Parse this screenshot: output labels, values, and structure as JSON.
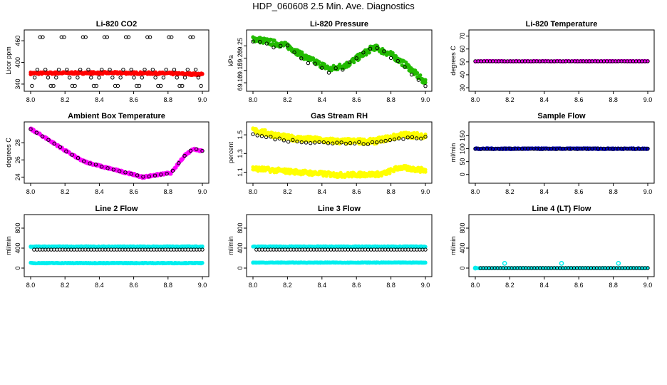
{
  "title": "HDP_060608  2.5 Min. Ave. Diagnostics",
  "chart_data": [
    {
      "type": "scatter",
      "title": "Li-820 CO2",
      "ylabel": "Licor ppm",
      "xlim": [
        8.0,
        9.0
      ],
      "ylim": [
        330,
        480
      ],
      "xticks": [
        "8.0",
        "8.2",
        "8.4",
        "8.6",
        "8.8",
        "9.0"
      ],
      "yticks": [
        "340",
        "400",
        "460"
      ],
      "series": [
        {
          "color": "#ff0000",
          "kind": "band",
          "values": [
            [
              8.0,
              370
            ],
            [
              8.25,
              371
            ],
            [
              8.5,
              371
            ],
            [
              8.75,
              370
            ],
            [
              9.0,
              367
            ]
          ],
          "spread": 3
        },
        {
          "color": "#000000",
          "kind": "cycle",
          "values": [
            335,
            358,
            380,
            470,
            470,
            380,
            358,
            335
          ],
          "n": 64
        }
      ]
    },
    {
      "type": "scatter",
      "title": "Li-820 Pressure",
      "ylabel": "kPa",
      "xlim": [
        8.0,
        9.0
      ],
      "ylim": [
        69.08,
        69.3
      ],
      "xticks": [
        "8.0",
        "8.2",
        "8.4",
        "8.6",
        "8.8",
        "9.0"
      ],
      "yticks": [
        "69.10",
        "69.15",
        "69.20",
        "69.25"
      ],
      "series": [
        {
          "color": "#22bb00",
          "kind": "band",
          "values": [
            [
              8.0,
              69.28
            ],
            [
              8.1,
              69.265
            ],
            [
              8.2,
              69.25
            ],
            [
              8.3,
              69.205
            ],
            [
              8.45,
              69.155
            ],
            [
              8.55,
              69.175
            ],
            [
              8.7,
              69.245
            ],
            [
              8.8,
              69.215
            ],
            [
              8.9,
              69.165
            ],
            [
              9.0,
              69.1
            ]
          ],
          "spread": 0.012
        },
        {
          "color": "#000000",
          "kind": "line",
          "values": [
            [
              8.0,
              69.275
            ],
            [
              8.1,
              69.255
            ],
            [
              8.2,
              69.245
            ],
            [
              8.3,
              69.195
            ],
            [
              8.45,
              69.145
            ],
            [
              8.55,
              69.17
            ],
            [
              8.7,
              69.245
            ],
            [
              8.8,
              69.205
            ],
            [
              8.9,
              69.155
            ],
            [
              9.0,
              69.095
            ]
          ],
          "n": 26,
          "jitter": 0.01
        }
      ]
    },
    {
      "type": "scatter",
      "title": "Li-820 Temperature",
      "ylabel": "degrees C",
      "xlim": [
        8.0,
        9.0
      ],
      "ylim": [
        30,
        72
      ],
      "xticks": [
        "8.0",
        "8.2",
        "8.4",
        "8.6",
        "8.8",
        "9.0"
      ],
      "yticks": [
        "30",
        "40",
        "50",
        "60",
        "70"
      ],
      "series": [
        {
          "color": "#ff00ff",
          "kind": "band",
          "values": [
            [
              8.0,
              50.5
            ],
            [
              9.0,
              50.5
            ]
          ],
          "spread": 0.3
        },
        {
          "color": "#000000",
          "kind": "line",
          "values": [
            [
              8.0,
              50.5
            ],
            [
              9.0,
              50.5
            ]
          ],
          "n": 60,
          "jitter": 0
        }
      ]
    },
    {
      "type": "scatter",
      "title": "Ambient Box Temperature",
      "ylabel": "degrees C",
      "xlim": [
        8.0,
        9.0
      ],
      "ylim": [
        23.7,
        30.0
      ],
      "xticks": [
        "8.0",
        "8.2",
        "8.4",
        "8.6",
        "8.8",
        "9.0"
      ],
      "yticks": [
        "24",
        "26",
        "28"
      ],
      "series": [
        {
          "color": "#ff00ff",
          "kind": "band",
          "values": [
            [
              8.0,
              29.6
            ],
            [
              8.1,
              28.4
            ],
            [
              8.2,
              27.1
            ],
            [
              8.3,
              25.9
            ],
            [
              8.4,
              25.3
            ],
            [
              8.5,
              24.8
            ],
            [
              8.6,
              24.3
            ],
            [
              8.65,
              24.0
            ],
            [
              8.75,
              24.3
            ],
            [
              8.82,
              24.5
            ],
            [
              8.9,
              26.6
            ],
            [
              8.95,
              27.3
            ],
            [
              9.0,
              27.0
            ]
          ],
          "spread": 0.12
        },
        {
          "color": "#000000",
          "kind": "line",
          "values": [
            [
              8.0,
              29.6
            ],
            [
              8.1,
              28.4
            ],
            [
              8.2,
              27.1
            ],
            [
              8.3,
              25.9
            ],
            [
              8.4,
              25.3
            ],
            [
              8.5,
              24.8
            ],
            [
              8.6,
              24.3
            ],
            [
              8.65,
              24.0
            ],
            [
              8.75,
              24.3
            ],
            [
              8.82,
              24.5
            ],
            [
              8.9,
              26.6
            ],
            [
              8.95,
              27.3
            ],
            [
              9.0,
              27.0
            ]
          ],
          "n": 30,
          "jitter": 0.05
        }
      ]
    },
    {
      "type": "scatter",
      "title": "Gas Stream RH",
      "ylabel": "percent",
      "xlim": [
        8.0,
        9.0
      ],
      "ylim": [
        1.02,
        1.6
      ],
      "xticks": [
        "8.0",
        "8.2",
        "8.4",
        "8.6",
        "8.8",
        "9.0"
      ],
      "yticks": [
        "1.1",
        "1.3",
        "1.5"
      ],
      "series": [
        {
          "color": "#ffff00",
          "kind": "band",
          "values": [
            [
              8.0,
              1.55
            ],
            [
              8.2,
              1.47
            ],
            [
              8.5,
              1.43
            ],
            [
              8.7,
              1.43
            ],
            [
              8.87,
              1.5
            ],
            [
              9.0,
              1.49
            ]
          ],
          "spread": 0.03
        },
        {
          "color": "#ffff00",
          "kind": "band",
          "values": [
            [
              8.0,
              1.14
            ],
            [
              8.2,
              1.11
            ],
            [
              8.5,
              1.07
            ],
            [
              8.75,
              1.08
            ],
            [
              8.85,
              1.15
            ],
            [
              9.0,
              1.12
            ]
          ],
          "spread": 0.025
        },
        {
          "color": "#000000",
          "kind": "line",
          "values": [
            [
              8.0,
              1.5
            ],
            [
              8.2,
              1.44
            ],
            [
              8.5,
              1.41
            ],
            [
              8.7,
              1.41
            ],
            [
              8.87,
              1.47
            ],
            [
              9.0,
              1.47
            ]
          ],
          "n": 40,
          "jitter": 0.015
        }
      ]
    },
    {
      "type": "scatter",
      "title": "Sample Flow",
      "ylabel": "ml/min",
      "xlim": [
        8.0,
        9.0
      ],
      "ylim": [
        -20,
        190
      ],
      "xticks": [
        "8.0",
        "8.2",
        "8.4",
        "8.6",
        "8.8",
        "9.0"
      ],
      "yticks": [
        "0",
        "50",
        "100",
        "150"
      ],
      "series": [
        {
          "color": "#0000cc",
          "kind": "band",
          "values": [
            [
              8.0,
              100
            ],
            [
              9.0,
              100
            ]
          ],
          "spread": 2
        },
        {
          "color": "#000000",
          "kind": "line",
          "values": [
            [
              8.0,
              100
            ],
            [
              9.0,
              100
            ]
          ],
          "n": 60,
          "jitter": 1
        }
      ]
    },
    {
      "type": "scatter",
      "title": "Line 2 Flow",
      "ylabel": "ml/min",
      "xlim": [
        8.0,
        9.0
      ],
      "ylim": [
        -100,
        1000
      ],
      "xticks": [
        "8.0",
        "8.2",
        "8.4",
        "8.6",
        "8.8",
        "9.0"
      ],
      "yticks": [
        "0",
        "400",
        "800"
      ],
      "series": [
        {
          "color": "#00eeee",
          "kind": "band",
          "values": [
            [
              8.0,
              430
            ],
            [
              9.0,
              430
            ]
          ],
          "spread": 8
        },
        {
          "color": "#00eeee",
          "kind": "band",
          "values": [
            [
              8.0,
              100
            ],
            [
              9.0,
              100
            ]
          ],
          "spread": 8
        },
        {
          "color": "#000000",
          "kind": "line",
          "values": [
            [
              8.02,
              370
            ],
            [
              9.0,
              370
            ]
          ],
          "n": 60,
          "jitter": 0
        }
      ]
    },
    {
      "type": "scatter",
      "title": "Line 3 Flow",
      "ylabel": "ml/min",
      "xlim": [
        8.0,
        9.0
      ],
      "ylim": [
        -100,
        1000
      ],
      "xticks": [
        "8.0",
        "8.2",
        "8.4",
        "8.6",
        "8.8",
        "9.0"
      ],
      "yticks": [
        "0",
        "400",
        "800"
      ],
      "series": [
        {
          "color": "#00eeee",
          "kind": "band",
          "values": [
            [
              8.0,
              430
            ],
            [
              9.0,
              430
            ]
          ],
          "spread": 8
        },
        {
          "color": "#00eeee",
          "kind": "band",
          "values": [
            [
              8.0,
              110
            ],
            [
              9.0,
              110
            ]
          ],
          "spread": 6
        },
        {
          "color": "#000000",
          "kind": "line",
          "values": [
            [
              8.02,
              370
            ],
            [
              9.0,
              370
            ]
          ],
          "n": 60,
          "jitter": 0
        }
      ]
    },
    {
      "type": "scatter",
      "title": "Line 4 (LT) Flow",
      "ylabel": "ml/min",
      "xlim": [
        8.0,
        9.0
      ],
      "ylim": [
        -100,
        1000
      ],
      "xticks": [
        "8.0",
        "8.2",
        "8.4",
        "8.6",
        "8.8",
        "9.0"
      ],
      "yticks": [
        "0",
        "400",
        "800"
      ],
      "series": [
        {
          "color": "#00eeee",
          "kind": "band",
          "values": [
            [
              8.0,
              0
            ],
            [
              9.0,
              0
            ]
          ],
          "spread": 3
        },
        {
          "color": "#000000",
          "kind": "line",
          "values": [
            [
              8.03,
              0
            ],
            [
              9.0,
              0
            ]
          ],
          "n": 60,
          "jitter": 0
        },
        {
          "color": "#00eeee",
          "kind": "points",
          "values": [
            [
              8.0,
              0
            ],
            [
              8.17,
              95
            ],
            [
              8.5,
              95
            ],
            [
              8.83,
              95
            ]
          ]
        }
      ]
    }
  ]
}
